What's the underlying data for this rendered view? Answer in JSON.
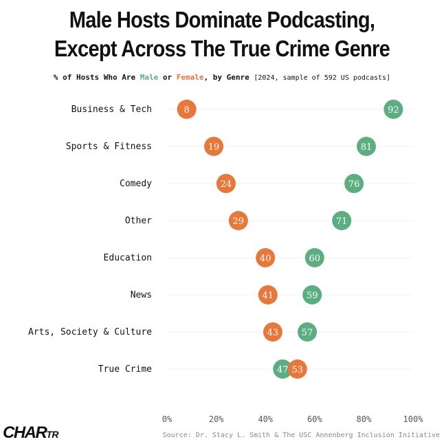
{
  "title_line1": "Male Hosts Dominate Podcasting,",
  "title_line2": "Except Across The True Crime Genre",
  "subtitle": {
    "prefix": "% of Hosts Who Are",
    "male": "Male",
    "or": "or",
    "female": "Female",
    "suffix": ", by Genre",
    "meta": "[2024, sample of 592 US podcasts]"
  },
  "logo": {
    "main": "CHAR",
    "small": "TR"
  },
  "source": "Source: Dr. Stacy L. Smith & The USC Annenberg Inclusion Initiative",
  "colors": {
    "male": "#5aae7f",
    "female": "#e8783a",
    "grid": "#f0f0f0",
    "text": "#111111"
  },
  "chart_data": {
    "type": "scatter",
    "categories": [
      "Business & Tech",
      "Sports & Fitness",
      "Comedy",
      "Other",
      "Education",
      "News",
      "Arts, Society & Culture",
      "True Crime"
    ],
    "series": [
      {
        "name": "Male",
        "values": [
          92,
          81,
          76,
          71,
          60,
          59,
          57,
          47
        ]
      },
      {
        "name": "Female",
        "values": [
          8,
          19,
          24,
          29,
          40,
          41,
          43,
          53
        ]
      }
    ],
    "xlim": [
      0,
      100
    ],
    "xticks": [
      "0%",
      "20%",
      "40%",
      "60%",
      "80%",
      "100%"
    ],
    "grid": true
  }
}
